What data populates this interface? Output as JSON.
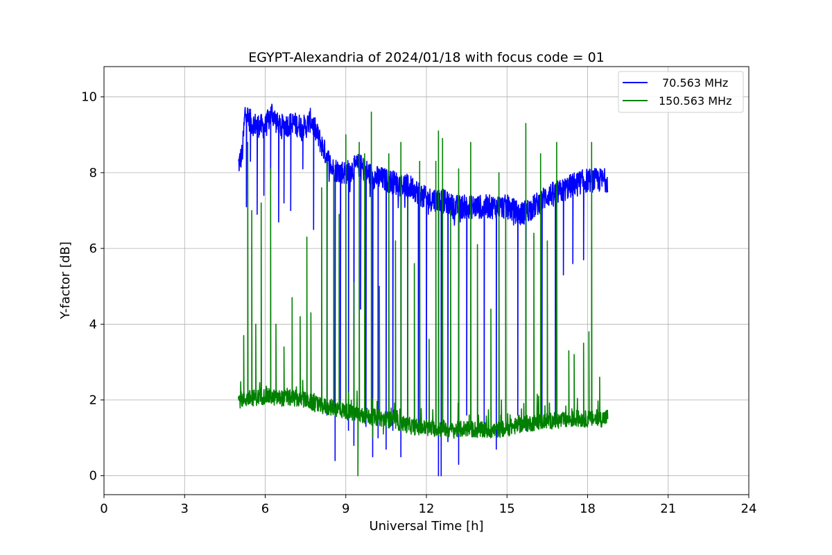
{
  "chart_data": {
    "type": "line",
    "title": "EGYPT-Alexandria of 2024/01/18 with focus code = 01",
    "xlabel": "Universal Time [h]",
    "ylabel": "Y-factor [dB]",
    "xlim": [
      0,
      24
    ],
    "ylim": [
      -0.5,
      10.8
    ],
    "xticks": [
      0,
      3,
      6,
      9,
      12,
      15,
      18,
      21,
      24
    ],
    "yticks": [
      0,
      2,
      4,
      6,
      8,
      10
    ],
    "grid": true,
    "legend_position": "top-right",
    "series": [
      {
        "name": "70.563 MHz",
        "color": "#0000ff",
        "baseline": [
          [
            5.0,
            8.2
          ],
          [
            5.15,
            8.5
          ],
          [
            5.25,
            9.6
          ],
          [
            5.5,
            9.3
          ],
          [
            6.0,
            9.2
          ],
          [
            6.25,
            9.6
          ],
          [
            6.5,
            9.2
          ],
          [
            7.0,
            9.3
          ],
          [
            7.5,
            9.2
          ],
          [
            7.7,
            9.4
          ],
          [
            8.0,
            8.9
          ],
          [
            8.25,
            8.5
          ],
          [
            8.5,
            8.1
          ],
          [
            9.0,
            8.0
          ],
          [
            9.5,
            8.2
          ],
          [
            10.0,
            7.9
          ],
          [
            10.5,
            7.8
          ],
          [
            11.0,
            7.7
          ],
          [
            11.5,
            7.6
          ],
          [
            12.0,
            7.3
          ],
          [
            12.5,
            7.3
          ],
          [
            13.0,
            7.1
          ],
          [
            13.5,
            7.1
          ],
          [
            14.0,
            7.1
          ],
          [
            14.5,
            7.1
          ],
          [
            15.0,
            7.1
          ],
          [
            15.5,
            6.9
          ],
          [
            16.0,
            7.1
          ],
          [
            16.5,
            7.4
          ],
          [
            17.0,
            7.5
          ],
          [
            17.5,
            7.7
          ],
          [
            18.0,
            7.8
          ],
          [
            18.5,
            7.8
          ],
          [
            18.75,
            7.8
          ]
        ],
        "dips": [
          [
            5.3,
            7.1
          ],
          [
            5.45,
            8.3
          ],
          [
            5.7,
            6.9
          ],
          [
            5.95,
            7.4
          ],
          [
            6.2,
            7.8
          ],
          [
            6.5,
            6.7
          ],
          [
            6.7,
            7.2
          ],
          [
            6.95,
            7.0
          ],
          [
            7.4,
            8.1
          ],
          [
            7.8,
            6.5
          ],
          [
            8.3,
            1.6
          ],
          [
            8.6,
            0.4
          ],
          [
            8.8,
            1.9
          ],
          [
            9.1,
            1.2
          ],
          [
            9.3,
            0.8
          ],
          [
            9.55,
            4.4
          ],
          [
            9.75,
            1.3
          ],
          [
            10.0,
            0.5
          ],
          [
            10.2,
            1.0
          ],
          [
            10.5,
            0.7
          ],
          [
            10.75,
            1.2
          ],
          [
            11.05,
            0.5
          ],
          [
            11.3,
            1.6
          ],
          [
            11.7,
            1.4
          ],
          [
            12.0,
            1.3
          ],
          [
            12.45,
            0.0
          ],
          [
            12.55,
            0.0
          ],
          [
            12.8,
            0.9
          ],
          [
            13.2,
            0.3
          ],
          [
            13.5,
            1.6
          ],
          [
            14.15,
            1.3
          ],
          [
            14.6,
            0.7
          ],
          [
            15.4,
            1.6
          ],
          [
            15.7,
            1.2
          ],
          [
            16.3,
            1.5
          ],
          [
            16.8,
            1.3
          ],
          [
            17.1,
            5.3
          ],
          [
            17.45,
            5.6
          ],
          [
            17.85,
            5.7
          ]
        ]
      },
      {
        "name": "150.563 MHz",
        "color": "#008000",
        "baseline": [
          [
            5.0,
            2.0
          ],
          [
            5.5,
            2.05
          ],
          [
            6.0,
            2.1
          ],
          [
            6.5,
            2.05
          ],
          [
            7.0,
            2.05
          ],
          [
            7.5,
            2.0
          ],
          [
            8.0,
            1.85
          ],
          [
            8.5,
            1.8
          ],
          [
            9.0,
            1.7
          ],
          [
            9.5,
            1.6
          ],
          [
            10.0,
            1.55
          ],
          [
            10.5,
            1.5
          ],
          [
            11.0,
            1.4
          ],
          [
            11.5,
            1.3
          ],
          [
            12.0,
            1.25
          ],
          [
            12.5,
            1.25
          ],
          [
            13.0,
            1.2
          ],
          [
            13.5,
            1.25
          ],
          [
            14.0,
            1.2
          ],
          [
            14.5,
            1.2
          ],
          [
            15.0,
            1.25
          ],
          [
            15.5,
            1.35
          ],
          [
            16.0,
            1.4
          ],
          [
            16.5,
            1.45
          ],
          [
            17.0,
            1.45
          ],
          [
            17.5,
            1.5
          ],
          [
            18.0,
            1.5
          ],
          [
            18.5,
            1.5
          ],
          [
            18.75,
            1.55
          ]
        ],
        "spikes": [
          [
            5.2,
            3.7
          ],
          [
            5.35,
            8.8
          ],
          [
            5.5,
            7.0
          ],
          [
            5.65,
            4.0
          ],
          [
            5.85,
            7.2
          ],
          [
            6.2,
            8.1
          ],
          [
            6.4,
            4.0
          ],
          [
            6.7,
            3.4
          ],
          [
            7.0,
            4.7
          ],
          [
            7.3,
            4.2
          ],
          [
            7.55,
            6.3
          ],
          [
            7.7,
            4.3
          ],
          [
            8.1,
            7.6
          ],
          [
            8.3,
            8.3
          ],
          [
            8.55,
            8.0
          ],
          [
            8.75,
            6.9
          ],
          [
            9.0,
            9.0
          ],
          [
            9.3,
            5.1
          ],
          [
            9.5,
            8.8
          ],
          [
            9.7,
            8.5
          ],
          [
            9.95,
            9.6
          ],
          [
            10.25,
            5.0
          ],
          [
            10.6,
            8.5
          ],
          [
            10.85,
            6.2
          ],
          [
            11.05,
            8.8
          ],
          [
            11.3,
            7.3
          ],
          [
            11.55,
            5.6
          ],
          [
            11.75,
            8.3
          ],
          [
            12.1,
            3.6
          ],
          [
            12.35,
            8.3
          ],
          [
            12.45,
            9.1
          ],
          [
            12.6,
            8.9
          ],
          [
            12.9,
            7.0
          ],
          [
            13.2,
            8.1
          ],
          [
            13.65,
            8.8
          ],
          [
            13.9,
            6.1
          ],
          [
            14.4,
            4.4
          ],
          [
            14.7,
            8.0
          ],
          [
            14.95,
            7.0
          ],
          [
            15.7,
            9.3
          ],
          [
            16.0,
            6.4
          ],
          [
            16.25,
            8.5
          ],
          [
            16.5,
            6.2
          ],
          [
            16.85,
            8.8
          ],
          [
            17.3,
            3.3
          ],
          [
            17.5,
            3.2
          ],
          [
            17.85,
            3.5
          ],
          [
            18.05,
            3.8
          ],
          [
            18.15,
            8.8
          ],
          [
            18.45,
            2.6
          ],
          [
            9.45,
            0.0
          ],
          [
            10.0,
            1.0
          ],
          [
            10.4,
            1.1
          ]
        ]
      }
    ]
  }
}
